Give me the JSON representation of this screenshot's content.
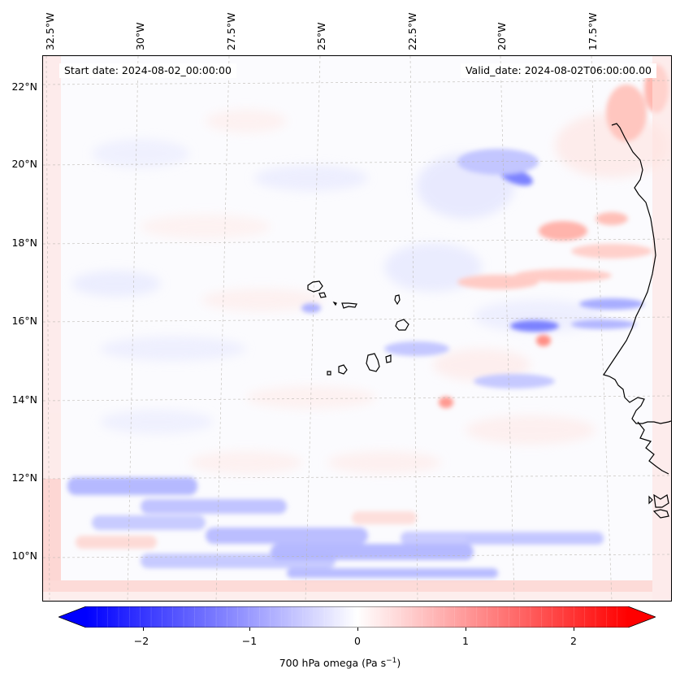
{
  "map": {
    "region": "Cape Verde / West Africa coast",
    "start_date_text": "Start date: 2024-08-02_00:00:00",
    "valid_date_text": "Valid_date: 2024-08-02T06:00:00.00",
    "longitude_labels": [
      "32.5°W",
      "30°W",
      "27.5°W",
      "25°W",
      "22.5°W",
      "20°W",
      "17.5°W"
    ],
    "latitude_labels": [
      "22°N",
      "20°N",
      "18°N",
      "16°N",
      "14°N",
      "12°N",
      "10°N"
    ],
    "field": "700 hPa omega",
    "colormap": "bwr",
    "colors": {
      "negative": "#0000ff",
      "neutral": "#ffffff",
      "positive": "#ff0000",
      "coastline": "#000000"
    },
    "gridlines": true
  },
  "colorbar": {
    "tick_labels": [
      "−2",
      "−1",
      "0",
      "1",
      "2"
    ],
    "tick_values": [
      -2,
      -1,
      0,
      1,
      2
    ],
    "range": [
      -2.5,
      2.5
    ],
    "extend": "both",
    "label": "700 hPa omega (Pa s",
    "label_sup": "−1",
    "label_end": ")"
  }
}
